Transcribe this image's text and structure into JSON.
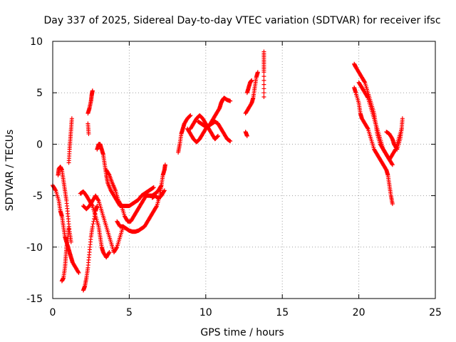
{
  "chart_data": {
    "type": "scatter",
    "title": "Day 337 of 2025, Sidereal Day-to-day VTEC variation (SDTVAR) for receiver ifsc",
    "xlabel": "GPS time / hours",
    "ylabel": "SDTVAR / TECUs",
    "xlim": [
      0,
      25
    ],
    "ylim": [
      -15,
      10
    ],
    "xticks": [
      "0",
      "5",
      "10",
      "15",
      "20",
      "25"
    ],
    "yticks": [
      "-15",
      "-10",
      "-5",
      "0",
      "5",
      "10"
    ],
    "xtick_values": [
      0,
      5,
      10,
      15,
      20,
      25
    ],
    "ytick_values": [
      -15,
      -10,
      -5,
      0,
      5,
      10
    ],
    "grid": true,
    "marker": "+",
    "series": [
      {
        "color": "#ff0000",
        "tracks": [
          [
            [
              0.0,
              -4.0
            ],
            [
              0.2,
              -4.5
            ],
            [
              0.4,
              -5.5
            ],
            [
              0.5,
              -6.5
            ],
            [
              0.6,
              -7.0
            ],
            [
              0.7,
              -8.0
            ],
            [
              0.8,
              -9.0
            ],
            [
              0.9,
              -9.5
            ],
            [
              1.0,
              -10.0
            ],
            [
              1.1,
              -10.5
            ],
            [
              1.2,
              -11.0
            ],
            [
              1.3,
              -11.5
            ],
            [
              1.5,
              -12.0
            ],
            [
              1.7,
              -12.5
            ]
          ],
          [
            [
              0.35,
              -3.0
            ],
            [
              0.4,
              -2.4
            ],
            [
              0.5,
              -2.2
            ],
            [
              0.6,
              -2.5
            ],
            [
              0.7,
              -3.5
            ],
            [
              0.8,
              -4.5
            ],
            [
              0.9,
              -5.5
            ],
            [
              1.0,
              -7.0
            ],
            [
              1.1,
              -8.5
            ],
            [
              1.2,
              -9.5
            ]
          ],
          [
            [
              0.6,
              -13.3
            ],
            [
              0.7,
              -13.0
            ],
            [
              0.8,
              -12.0
            ],
            [
              0.85,
              -11.0
            ],
            [
              0.9,
              -10.0
            ],
            [
              1.0,
              -9.0
            ],
            [
              1.05,
              -8.0
            ]
          ],
          [
            [
              1.05,
              -1.8
            ],
            [
              1.1,
              -0.5
            ],
            [
              1.15,
              0.5
            ],
            [
              1.2,
              1.5
            ],
            [
              1.25,
              2.5
            ]
          ],
          [
            [
              1.8,
              -4.8
            ],
            [
              2.0,
              -4.6
            ],
            [
              2.2,
              -5.0
            ],
            [
              2.4,
              -5.5
            ],
            [
              2.6,
              -6.0
            ],
            [
              2.8,
              -7.0
            ],
            [
              3.0,
              -8.0
            ],
            [
              3.1,
              -9.0
            ],
            [
              3.2,
              -10.0
            ],
            [
              3.3,
              -10.5
            ],
            [
              3.5,
              -11.0
            ],
            [
              3.7,
              -10.5
            ]
          ],
          [
            [
              2.0,
              -14.2
            ],
            [
              2.1,
              -13.8
            ],
            [
              2.2,
              -13.0
            ],
            [
              2.3,
              -12.0
            ],
            [
              2.4,
              -10.5
            ],
            [
              2.5,
              -9.0
            ],
            [
              2.6,
              -8.0
            ],
            [
              2.8,
              -6.5
            ],
            [
              2.9,
              -6.0
            ]
          ],
          [
            [
              2.0,
              -6.0
            ],
            [
              2.2,
              -6.3
            ],
            [
              2.4,
              -6.0
            ],
            [
              2.6,
              -5.5
            ],
            [
              2.8,
              -5.0
            ],
            [
              3.0,
              -5.5
            ],
            [
              3.2,
              -6.5
            ],
            [
              3.4,
              -7.5
            ],
            [
              3.6,
              -8.5
            ],
            [
              3.8,
              -9.5
            ],
            [
              4.0,
              -10.5
            ],
            [
              4.2,
              -10.0
            ],
            [
              4.4,
              -9.0
            ],
            [
              4.6,
              -8.0
            ]
          ],
          [
            [
              2.3,
              3.0
            ],
            [
              2.4,
              3.5
            ],
            [
              2.5,
              4.2
            ],
            [
              2.55,
              4.8
            ],
            [
              2.6,
              5.2
            ]
          ],
          [
            [
              2.3,
              2.0
            ],
            [
              2.35,
              1.0
            ]
          ],
          [
            [
              2.9,
              -0.5
            ],
            [
              3.0,
              0.0
            ],
            [
              3.1,
              0.0
            ],
            [
              3.2,
              -0.5
            ],
            [
              3.3,
              -1.0
            ],
            [
              3.4,
              -2.0
            ],
            [
              3.5,
              -3.0
            ],
            [
              3.6,
              -3.8
            ],
            [
              3.8,
              -4.5
            ],
            [
              4.0,
              -5.0
            ],
            [
              4.2,
              -5.5
            ],
            [
              4.4,
              -6.0
            ],
            [
              4.6,
              -6.0
            ],
            [
              4.8,
              -6.0
            ],
            [
              5.0,
              -6.0
            ],
            [
              5.2,
              -5.8
            ],
            [
              5.4,
              -5.6
            ],
            [
              5.6,
              -5.4
            ],
            [
              5.8,
              -5.0
            ],
            [
              6.0,
              -4.8
            ],
            [
              6.2,
              -4.6
            ],
            [
              6.4,
              -4.4
            ],
            [
              6.6,
              -4.2
            ]
          ],
          [
            [
              3.5,
              -2.5
            ],
            [
              3.7,
              -3.0
            ],
            [
              3.9,
              -3.8
            ],
            [
              4.1,
              -4.5
            ],
            [
              4.3,
              -5.5
            ],
            [
              4.5,
              -6.0
            ],
            [
              4.7,
              -7.0
            ],
            [
              4.9,
              -7.5
            ],
            [
              5.1,
              -7.5
            ],
            [
              5.3,
              -7.0
            ],
            [
              5.5,
              -6.5
            ],
            [
              5.7,
              -6.0
            ],
            [
              5.9,
              -5.5
            ],
            [
              6.1,
              -5.0
            ],
            [
              6.3,
              -5.0
            ],
            [
              6.5,
              -5.0
            ],
            [
              6.7,
              -4.8
            ],
            [
              6.9,
              -4.5
            ],
            [
              7.1,
              -4.0
            ]
          ],
          [
            [
              4.2,
              -7.5
            ],
            [
              4.4,
              -8.0
            ],
            [
              4.6,
              -8.0
            ],
            [
              4.8,
              -8.2
            ],
            [
              5.0,
              -8.4
            ],
            [
              5.2,
              -8.5
            ],
            [
              5.4,
              -8.5
            ],
            [
              5.6,
              -8.4
            ],
            [
              5.8,
              -8.2
            ],
            [
              6.0,
              -8.0
            ],
            [
              6.2,
              -7.5
            ],
            [
              6.4,
              -7.0
            ],
            [
              6.6,
              -6.5
            ],
            [
              6.8,
              -6.0
            ],
            [
              7.0,
              -5.0
            ],
            [
              7.1,
              -4.0
            ],
            [
              7.2,
              -3.0
            ],
            [
              7.3,
              -2.5
            ],
            [
              7.35,
              -2.0
            ]
          ],
          [
            [
              6.5,
              -5.2
            ],
            [
              6.7,
              -5.0
            ],
            [
              6.9,
              -5.3
            ],
            [
              7.1,
              -5.0
            ],
            [
              7.3,
              -4.5
            ]
          ],
          [
            [
              8.2,
              -0.8
            ],
            [
              8.3,
              0.0
            ],
            [
              8.4,
              1.0
            ],
            [
              8.5,
              1.5
            ],
            [
              8.6,
              2.0
            ],
            [
              8.8,
              2.5
            ],
            [
              9.0,
              2.8
            ]
          ],
          [
            [
              8.8,
              1.5
            ],
            [
              9.0,
              1.0
            ],
            [
              9.2,
              0.5
            ],
            [
              9.4,
              0.2
            ],
            [
              9.6,
              0.5
            ],
            [
              9.8,
              1.0
            ],
            [
              10.0,
              1.5
            ],
            [
              10.2,
              1.8
            ],
            [
              10.4,
              2.0
            ],
            [
              10.6,
              2.2
            ],
            [
              10.8,
              2.0
            ],
            [
              11.0,
              1.5
            ],
            [
              11.2,
              1.0
            ],
            [
              11.4,
              0.5
            ],
            [
              11.6,
              0.3
            ]
          ],
          [
            [
              9.0,
              1.5
            ],
            [
              9.2,
              2.0
            ],
            [
              9.4,
              2.5
            ],
            [
              9.6,
              2.8
            ],
            [
              9.8,
              2.5
            ],
            [
              10.0,
              2.0
            ],
            [
              10.2,
              1.5
            ],
            [
              10.4,
              1.0
            ],
            [
              10.6,
              0.5
            ],
            [
              10.8,
              0.8
            ]
          ],
          [
            [
              9.5,
              2.2
            ],
            [
              9.7,
              2.0
            ],
            [
              9.9,
              1.8
            ],
            [
              10.1,
              1.6
            ],
            [
              10.3,
              2.0
            ],
            [
              10.5,
              2.5
            ],
            [
              10.7,
              3.0
            ],
            [
              10.9,
              3.5
            ],
            [
              11.0,
              4.0
            ],
            [
              11.1,
              4.3
            ],
            [
              11.2,
              4.5
            ],
            [
              11.4,
              4.3
            ],
            [
              11.6,
              4.2
            ]
          ],
          [
            [
              12.6,
              3.0
            ],
            [
              12.8,
              3.5
            ],
            [
              13.0,
              4.0
            ],
            [
              13.1,
              4.5
            ],
            [
              13.2,
              5.5
            ],
            [
              13.3,
              6.5
            ],
            [
              13.4,
              7.0
            ]
          ],
          [
            [
              12.7,
              5.0
            ],
            [
              12.8,
              5.5
            ],
            [
              12.9,
              6.0
            ],
            [
              13.0,
              6.2
            ]
          ],
          [
            [
              12.6,
              1.2
            ],
            [
              12.7,
              0.8
            ]
          ],
          [
            [
              13.8,
              9.0
            ],
            [
              13.8,
              8.0
            ],
            [
              13.8,
              7.0
            ],
            [
              13.8,
              4.6
            ]
          ],
          [
            [
              19.7,
              7.8
            ],
            [
              19.8,
              7.5
            ],
            [
              20.0,
              7.0
            ],
            [
              20.2,
              6.5
            ],
            [
              20.4,
              6.0
            ],
            [
              20.6,
              5.0
            ],
            [
              20.8,
              4.0
            ],
            [
              21.0,
              3.0
            ],
            [
              21.1,
              2.0
            ],
            [
              21.2,
              1.0
            ],
            [
              21.4,
              0.0
            ],
            [
              21.6,
              -0.5
            ],
            [
              21.8,
              -1.0
            ],
            [
              22.0,
              -1.5
            ],
            [
              22.2,
              -2.0
            ]
          ],
          [
            [
              19.7,
              5.5
            ],
            [
              19.8,
              5.0
            ],
            [
              20.0,
              4.0
            ],
            [
              20.1,
              3.0
            ],
            [
              20.2,
              2.5
            ],
            [
              20.4,
              2.0
            ],
            [
              20.6,
              1.5
            ],
            [
              20.8,
              0.5
            ],
            [
              21.0,
              -0.5
            ],
            [
              21.2,
              -1.0
            ],
            [
              21.4,
              -1.5
            ],
            [
              21.6,
              -2.0
            ],
            [
              21.8,
              -2.5
            ],
            [
              21.9,
              -3.0
            ],
            [
              22.0,
              -4.0
            ],
            [
              22.1,
              -5.0
            ],
            [
              22.2,
              -5.8
            ]
          ],
          [
            [
              20.0,
              6.0
            ],
            [
              20.2,
              5.5
            ],
            [
              20.4,
              5.0
            ],
            [
              20.6,
              4.5
            ],
            [
              20.8,
              3.5
            ],
            [
              21.0,
              2.5
            ],
            [
              21.2,
              1.5
            ],
            [
              21.4,
              0.5
            ],
            [
              21.6,
              -0.5
            ],
            [
              21.8,
              -1.0
            ],
            [
              22.0,
              -1.5
            ],
            [
              22.2,
              -1.0
            ],
            [
              22.4,
              -0.5
            ],
            [
              22.6,
              0.5
            ],
            [
              22.8,
              1.5
            ],
            [
              22.85,
              2.5
            ]
          ],
          [
            [
              21.8,
              1.2
            ],
            [
              22.0,
              1.0
            ],
            [
              22.2,
              0.5
            ],
            [
              22.3,
              0.0
            ],
            [
              22.5,
              -0.5
            ],
            [
              22.7,
              0.5
            ],
            [
              22.8,
              1.5
            ]
          ]
        ]
      }
    ]
  }
}
